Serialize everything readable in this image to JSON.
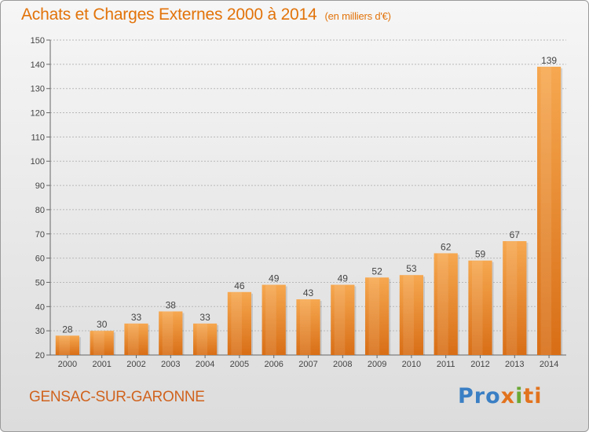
{
  "title": "Achats et Charges Externes 2000 à 2014",
  "unit_note": "(en milliers d'€)",
  "place": "GENSAC-SUR-GARONNE",
  "logo": {
    "text": "Proxiti",
    "colors": [
      "#3a7fc4",
      "#e2731e",
      "#6aa834"
    ]
  },
  "chart_data": {
    "type": "bar",
    "categories": [
      "2000",
      "2001",
      "2002",
      "2003",
      "2004",
      "2005",
      "2006",
      "2007",
      "2008",
      "2009",
      "2010",
      "2011",
      "2012",
      "2013",
      "2014"
    ],
    "values": [
      28,
      30,
      33,
      38,
      33,
      46,
      49,
      43,
      49,
      52,
      53,
      62,
      59,
      67,
      139
    ],
    "ylim": [
      20,
      150
    ],
    "yticks": [
      20,
      30,
      40,
      50,
      60,
      70,
      80,
      90,
      100,
      110,
      120,
      130,
      140,
      150
    ],
    "grid": true,
    "bar_color": "#f0841e"
  }
}
